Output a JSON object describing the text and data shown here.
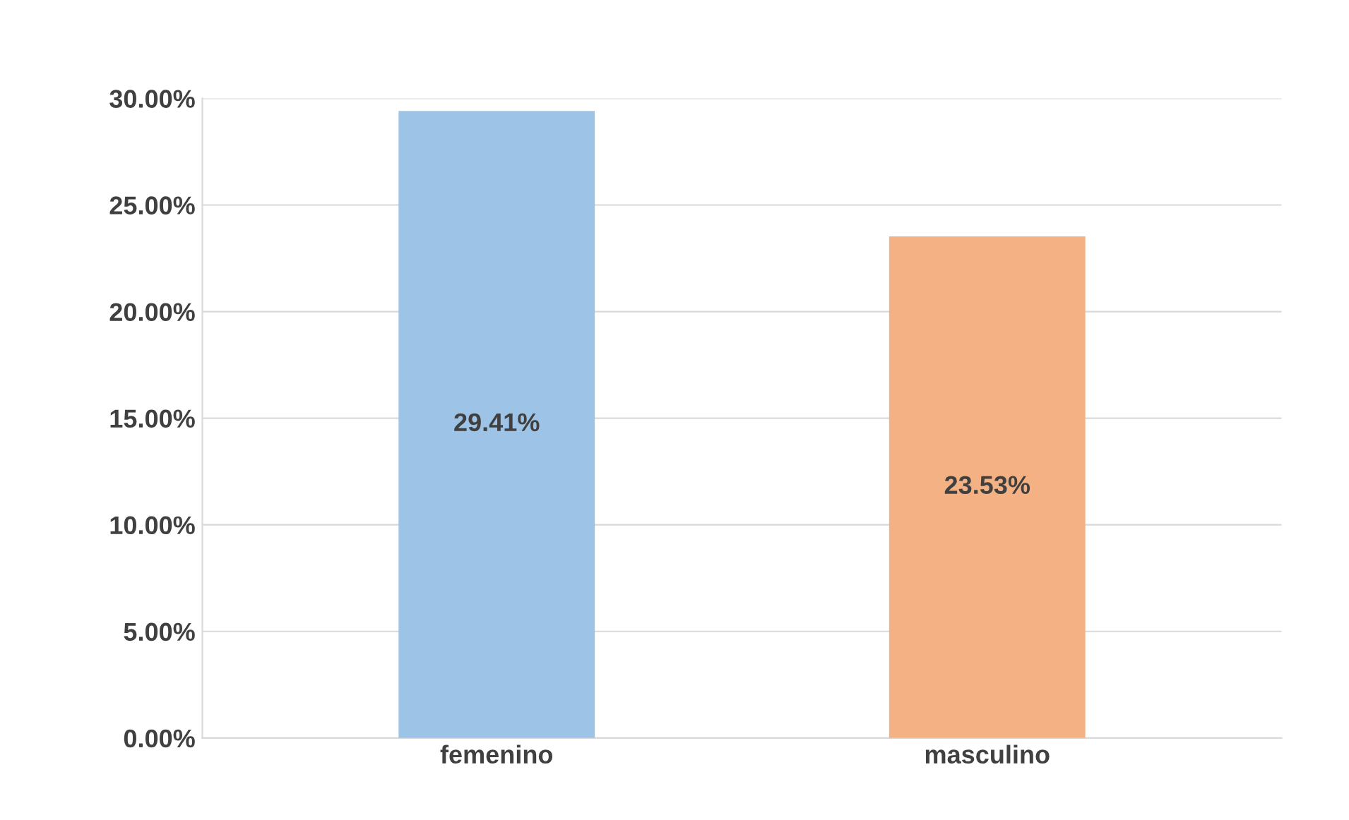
{
  "chart_data": {
    "type": "bar",
    "categories": [
      "femenino",
      "masculino"
    ],
    "values": [
      29.41,
      23.53
    ],
    "colors": [
      "#9dc3e6",
      "#f4b183"
    ],
    "value_labels": [
      "29.41%",
      "23.53%"
    ],
    "ylim": [
      0,
      30
    ],
    "yticks": [
      {
        "value": 0,
        "label": "0.00%"
      },
      {
        "value": 5,
        "label": "5.00%"
      },
      {
        "value": 10,
        "label": "10.00%"
      },
      {
        "value": 15,
        "label": "15.00%"
      },
      {
        "value": 20,
        "label": "20.00%"
      },
      {
        "value": 25,
        "label": "25.00%"
      },
      {
        "value": 30,
        "label": "30.00%"
      }
    ],
    "grid": "y"
  }
}
